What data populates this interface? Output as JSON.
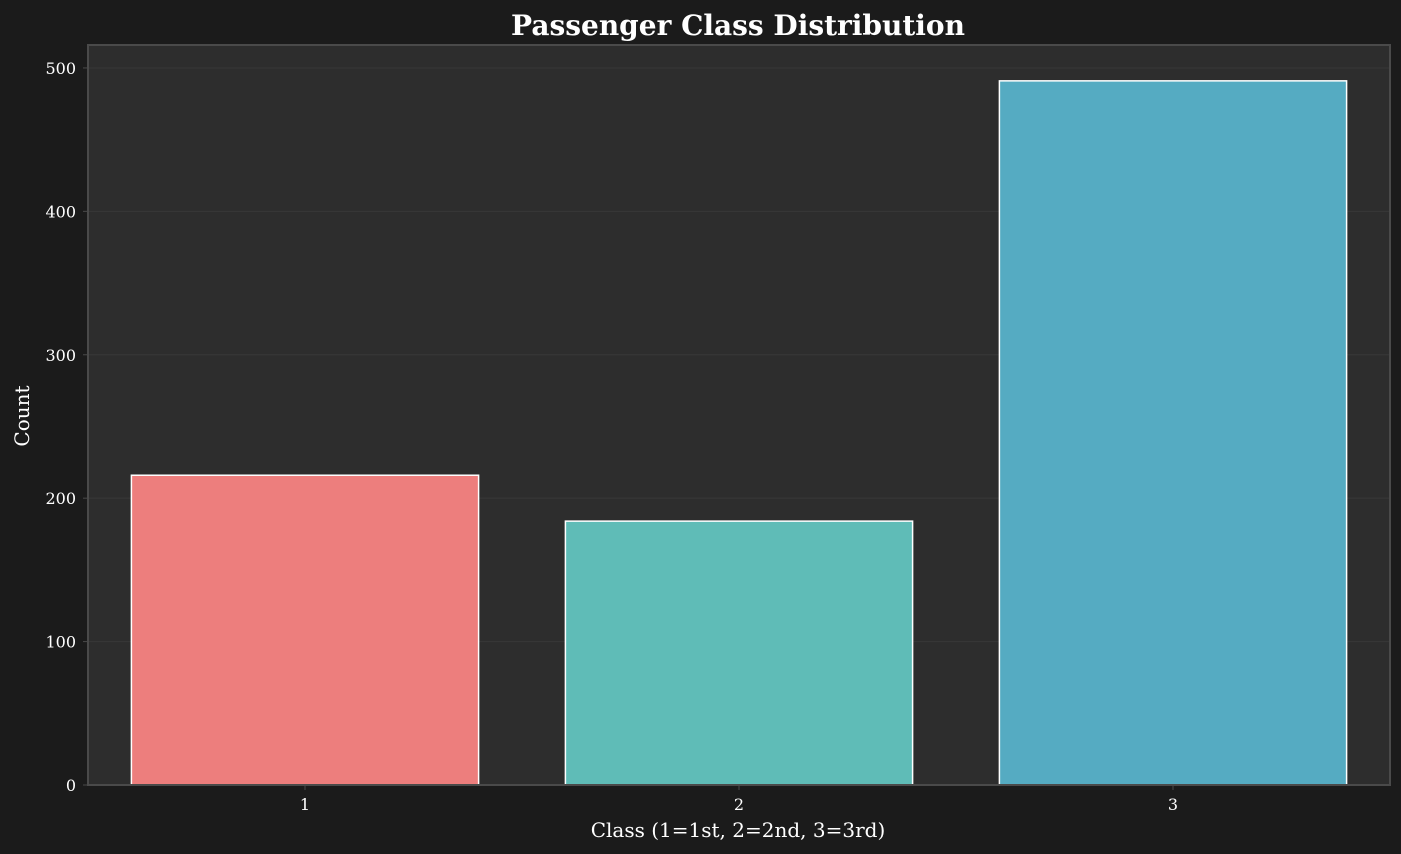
{
  "chart_data": {
    "type": "bar",
    "title": "Passenger Class Distribution",
    "xlabel": "Class (1=1st, 2=2nd, 3=3rd)",
    "ylabel": "Count",
    "categories": [
      "1",
      "2",
      "3"
    ],
    "values": [
      216,
      184,
      491
    ],
    "bar_colors": [
      "#ed7e7d",
      "#5fbcb7",
      "#55abc2"
    ],
    "ylim": [
      0,
      516
    ],
    "yticks": [
      0,
      100,
      200,
      300,
      400,
      500
    ],
    "grid": true,
    "legend": false,
    "colors": {
      "page_background": "#1b1b1b",
      "plot_background": "#2d2d2d",
      "frame": "#4a4a4a",
      "grid": "#383838",
      "bar_edge": "#ffffff",
      "text": "#ffffff"
    }
  }
}
